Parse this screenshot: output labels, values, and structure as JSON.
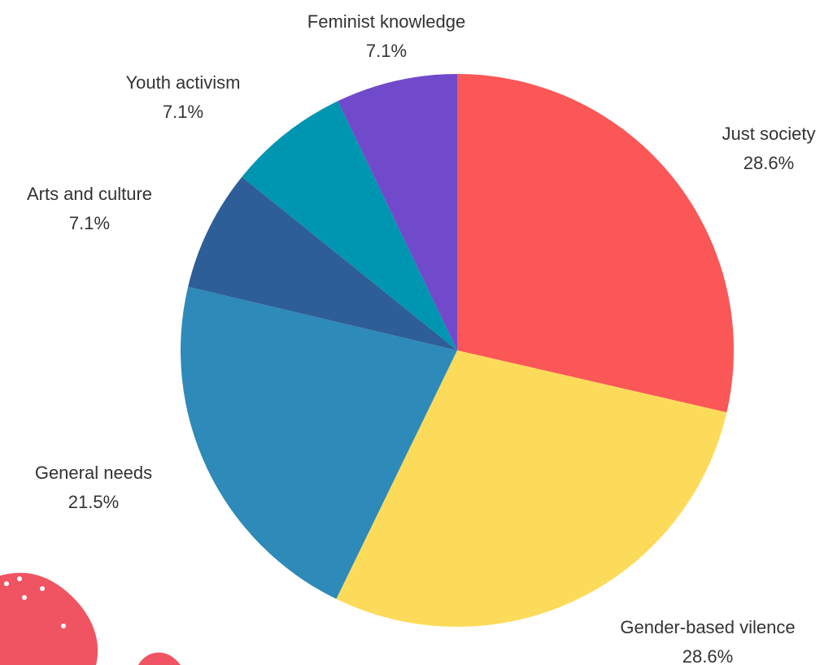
{
  "chart_data": {
    "type": "pie",
    "title": "",
    "slices": [
      {
        "label": "Just society",
        "value": 28.6,
        "value_label": "28.6%",
        "color": "#FB5757"
      },
      {
        "label": "Gender-based vilence",
        "value": 28.6,
        "value_label": "28.6%",
        "color": "#FDDB5A"
      },
      {
        "label": "General needs",
        "value": 21.5,
        "value_label": "21.5%",
        "color": "#2E8AB8"
      },
      {
        "label": "Arts and culture",
        "value": 7.1,
        "value_label": "7.1%",
        "color": "#2E5E97"
      },
      {
        "label": "Youth activism",
        "value": 7.1,
        "value_label": "7.1%",
        "color": "#0095B0"
      },
      {
        "label": "Feminist knowledge",
        "value": 7.1,
        "value_label": "7.1%",
        "color": "#714ACB"
      }
    ],
    "start_angle_deg": 0,
    "direction": "clockwise",
    "legend": "none"
  },
  "decoration": {
    "color": "#F05462"
  }
}
